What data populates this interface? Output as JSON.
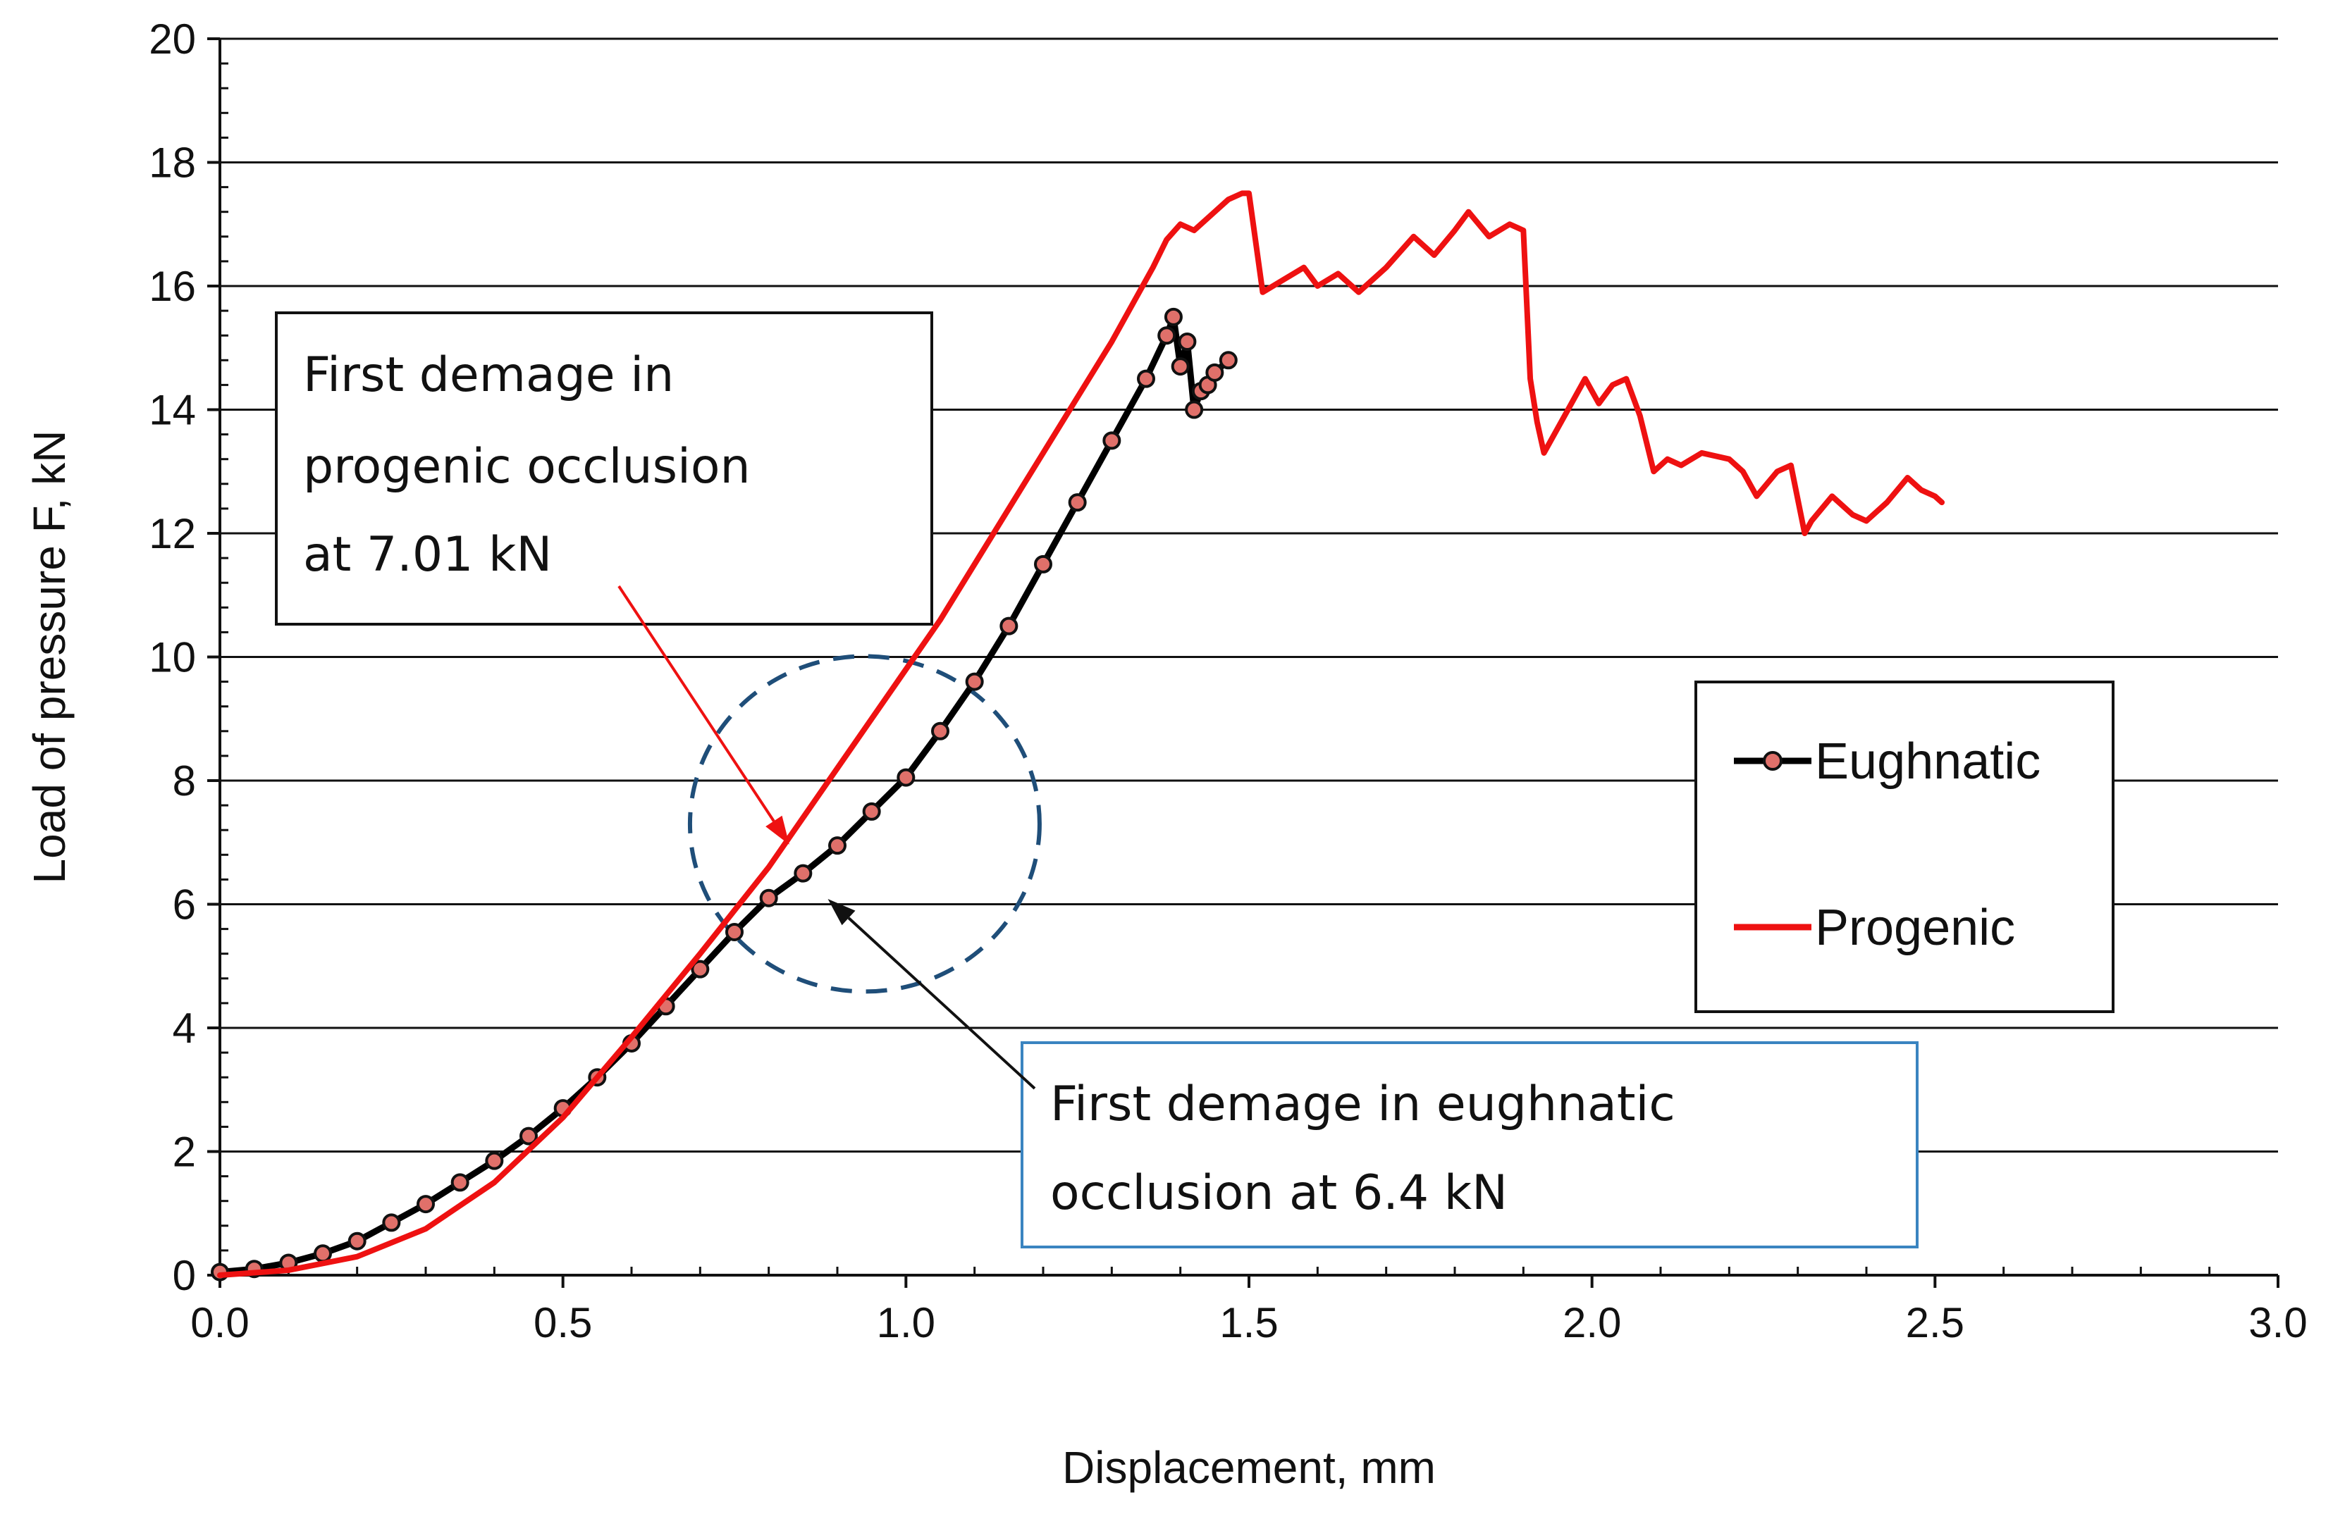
{
  "chart_data": {
    "type": "line",
    "title": "",
    "xlabel": "Displacement, mm",
    "ylabel": "Load of pressure F, kN",
    "xlim": [
      0,
      3.0
    ],
    "ylim": [
      0,
      20
    ],
    "xticks": [
      0.0,
      0.5,
      1.0,
      1.5,
      2.0,
      2.5,
      3.0
    ],
    "xtick_labels": [
      "0.0",
      "0.5",
      "1.0",
      "1.5",
      "2.0",
      "2.5",
      "3.0"
    ],
    "yticks": [
      0,
      2,
      4,
      6,
      8,
      10,
      12,
      14,
      16,
      18,
      20
    ],
    "ytick_labels": [
      "0",
      "2",
      "4",
      "6",
      "8",
      "10",
      "12",
      "14",
      "16",
      "18",
      "20"
    ],
    "grid": "horizontal",
    "legend_position": "right",
    "series": [
      {
        "name": "Eughnatic",
        "style": "line-with-markers",
        "line_color": "#000000",
        "marker_color": "#e0706a",
        "x": [
          0.0,
          0.05,
          0.1,
          0.15,
          0.2,
          0.25,
          0.3,
          0.35,
          0.4,
          0.45,
          0.5,
          0.55,
          0.6,
          0.65,
          0.7,
          0.75,
          0.8,
          0.85,
          0.9,
          0.95,
          1.0,
          1.05,
          1.1,
          1.15,
          1.2,
          1.25,
          1.3,
          1.35,
          1.38,
          1.39,
          1.4,
          1.41,
          1.42,
          1.43,
          1.44,
          1.45,
          1.47
        ],
        "y": [
          0.05,
          0.1,
          0.2,
          0.35,
          0.55,
          0.85,
          1.15,
          1.5,
          1.85,
          2.25,
          2.7,
          3.2,
          3.75,
          4.35,
          4.95,
          5.55,
          6.1,
          6.5,
          6.95,
          7.5,
          8.05,
          8.8,
          9.6,
          10.5,
          11.5,
          12.5,
          13.5,
          14.5,
          15.2,
          15.5,
          14.7,
          15.1,
          14.0,
          14.3,
          14.4,
          14.6,
          14.8
        ]
      },
      {
        "name": "Progenic",
        "style": "line",
        "line_color": "#ee1111",
        "x": [
          0.0,
          0.1,
          0.2,
          0.3,
          0.4,
          0.5,
          0.6,
          0.7,
          0.8,
          0.85,
          0.9,
          0.95,
          1.0,
          1.05,
          1.1,
          1.15,
          1.2,
          1.25,
          1.3,
          1.33,
          1.36,
          1.38,
          1.4,
          1.42,
          1.45,
          1.47,
          1.49,
          1.5,
          1.52,
          1.55,
          1.58,
          1.6,
          1.63,
          1.66,
          1.7,
          1.74,
          1.77,
          1.8,
          1.82,
          1.85,
          1.88,
          1.9,
          1.91,
          1.92,
          1.93,
          1.96,
          1.99,
          2.01,
          2.03,
          2.05,
          2.07,
          2.09,
          2.11,
          2.13,
          2.16,
          2.2,
          2.22,
          2.24,
          2.27,
          2.29,
          2.31,
          2.32,
          2.35,
          2.38,
          2.4,
          2.43,
          2.46,
          2.48,
          2.5,
          2.51
        ],
        "y": [
          0.0,
          0.08,
          0.3,
          0.75,
          1.5,
          2.55,
          3.85,
          5.2,
          6.6,
          7.4,
          8.2,
          9.0,
          9.8,
          10.6,
          11.5,
          12.4,
          13.3,
          14.2,
          15.1,
          15.7,
          16.3,
          16.75,
          17.0,
          16.9,
          17.2,
          17.4,
          17.5,
          17.5,
          15.9,
          16.1,
          16.3,
          16.0,
          16.2,
          15.9,
          16.3,
          16.8,
          16.5,
          16.9,
          17.2,
          16.8,
          17.0,
          16.9,
          14.5,
          13.8,
          13.3,
          13.9,
          14.5,
          14.1,
          14.4,
          14.5,
          13.9,
          13.0,
          13.2,
          13.1,
          13.3,
          13.2,
          13.0,
          12.6,
          13.0,
          13.1,
          12.0,
          12.2,
          12.6,
          12.3,
          12.2,
          12.5,
          12.9,
          12.7,
          12.6,
          12.5
        ]
      }
    ],
    "annotations": [
      {
        "lines": [
          "First demage in",
          "progenic occlusion",
          "at 7.01 kN"
        ],
        "border_color": "#111111",
        "arrow_color": "#ee1111",
        "points_to": {
          "x": 0.83,
          "y": 7.01
        }
      },
      {
        "lines": [
          "First demage in eughnatic",
          "occlusion at 6.4 kN"
        ],
        "border_color": "#3a84c0",
        "arrow_color": "#111111",
        "points_to": {
          "x": 0.88,
          "y": 6.2
        }
      }
    ],
    "highlight_circle": {
      "center": {
        "x": 0.94,
        "y": 7.3
      },
      "style": "dashed",
      "color": "#1f4e79"
    }
  }
}
